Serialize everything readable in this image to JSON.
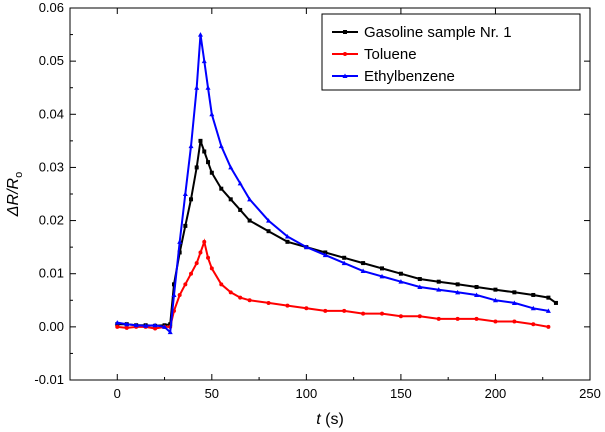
{
  "chart_data": {
    "type": "line",
    "xlabel_italic": "t",
    "xlabel_unit": " (s)",
    "ylabel": "ΔR/R",
    "ylabel_sub": "o",
    "xlim": [
      -25,
      250
    ],
    "ylim": [
      -0.01,
      0.06
    ],
    "xticks": [
      0,
      50,
      100,
      150,
      200,
      250
    ],
    "yticks": [
      -0.01,
      0.0,
      0.01,
      0.02,
      0.03,
      0.04,
      0.05,
      0.06
    ],
    "ytick_labels": [
      "-0.01",
      "0.00",
      "0.01",
      "0.02",
      "0.03",
      "0.04",
      "0.05",
      "0.06"
    ],
    "legend_position": "top-right",
    "series": [
      {
        "name": "Gasoline sample Nr. 1",
        "color": "#000000",
        "marker": "square",
        "x": [
          0,
          5,
          10,
          15,
          20,
          25,
          28,
          30,
          33,
          36,
          39,
          42,
          44,
          46,
          48,
          50,
          55,
          60,
          65,
          70,
          80,
          90,
          100,
          110,
          120,
          130,
          140,
          150,
          160,
          170,
          180,
          190,
          200,
          210,
          220,
          228,
          232
        ],
        "y": [
          0.0005,
          0.0005,
          0.0003,
          0.0003,
          0.0002,
          0.0003,
          0.0005,
          0.008,
          0.014,
          0.019,
          0.024,
          0.03,
          0.035,
          0.033,
          0.031,
          0.029,
          0.026,
          0.024,
          0.022,
          0.02,
          0.018,
          0.016,
          0.015,
          0.014,
          0.013,
          0.012,
          0.011,
          0.01,
          0.009,
          0.0085,
          0.008,
          0.0075,
          0.007,
          0.0065,
          0.006,
          0.0055,
          0.0045
        ]
      },
      {
        "name": "Toluene",
        "color": "#ff0000",
        "marker": "circle",
        "x": [
          0,
          5,
          10,
          15,
          20,
          25,
          28,
          30,
          33,
          36,
          39,
          42,
          44,
          46,
          48,
          50,
          55,
          60,
          65,
          70,
          80,
          90,
          100,
          110,
          120,
          130,
          140,
          150,
          160,
          170,
          180,
          190,
          200,
          210,
          220,
          228
        ],
        "y": [
          0.0,
          -0.0002,
          0.0,
          0.0,
          -0.0003,
          0.0,
          0.0,
          0.003,
          0.006,
          0.008,
          0.01,
          0.012,
          0.014,
          0.016,
          0.013,
          0.011,
          0.008,
          0.0065,
          0.0055,
          0.005,
          0.0045,
          0.004,
          0.0035,
          0.003,
          0.003,
          0.0025,
          0.0025,
          0.002,
          0.002,
          0.0015,
          0.0015,
          0.0015,
          0.001,
          0.001,
          0.0005,
          0.0
        ]
      },
      {
        "name": "Ethylbenzene",
        "color": "#0000ff",
        "marker": "triangle",
        "x": [
          0,
          5,
          10,
          15,
          20,
          25,
          28,
          30,
          33,
          36,
          39,
          42,
          44,
          46,
          48,
          50,
          55,
          60,
          65,
          70,
          80,
          90,
          100,
          110,
          120,
          130,
          140,
          150,
          160,
          170,
          180,
          190,
          200,
          210,
          220,
          228
        ],
        "y": [
          0.0008,
          0.0005,
          0.0003,
          0.0002,
          0.0003,
          0.0,
          -0.001,
          0.006,
          0.016,
          0.025,
          0.034,
          0.045,
          0.055,
          0.05,
          0.045,
          0.04,
          0.034,
          0.03,
          0.027,
          0.024,
          0.02,
          0.017,
          0.015,
          0.0135,
          0.012,
          0.0105,
          0.0095,
          0.0085,
          0.0075,
          0.007,
          0.0065,
          0.006,
          0.005,
          0.0045,
          0.0035,
          0.003
        ]
      }
    ]
  }
}
